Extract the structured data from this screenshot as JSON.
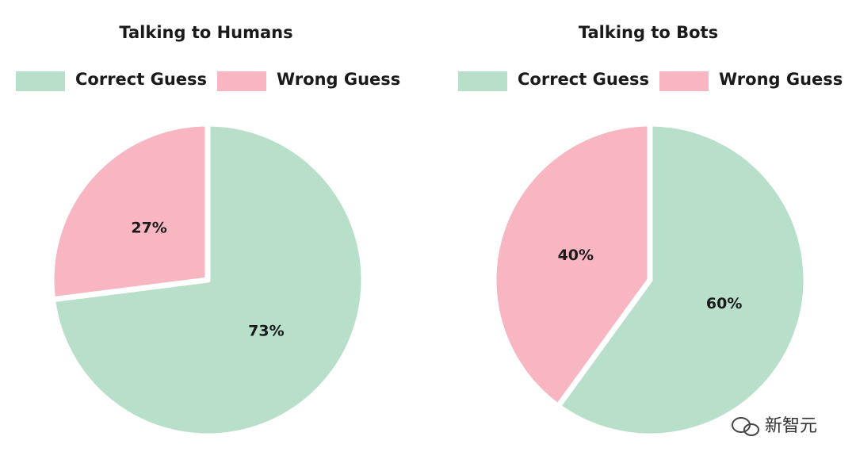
{
  "chart_data": [
    {
      "type": "pie",
      "title": "Talking to Humans",
      "categories": [
        "Correct Guess",
        "Wrong Guess"
      ],
      "values": [
        73,
        27
      ],
      "value_labels": [
        "73%",
        "27%"
      ],
      "colors": [
        "#b7dfca",
        "#f7b6c2"
      ]
    },
    {
      "type": "pie",
      "title": "Talking to Bots",
      "categories": [
        "Correct Guess",
        "Wrong Guess"
      ],
      "values": [
        60,
        40
      ],
      "value_labels": [
        "60%",
        "40%"
      ],
      "colors": [
        "#b7dfca",
        "#f7b6c2"
      ]
    }
  ],
  "watermark": "新智元"
}
